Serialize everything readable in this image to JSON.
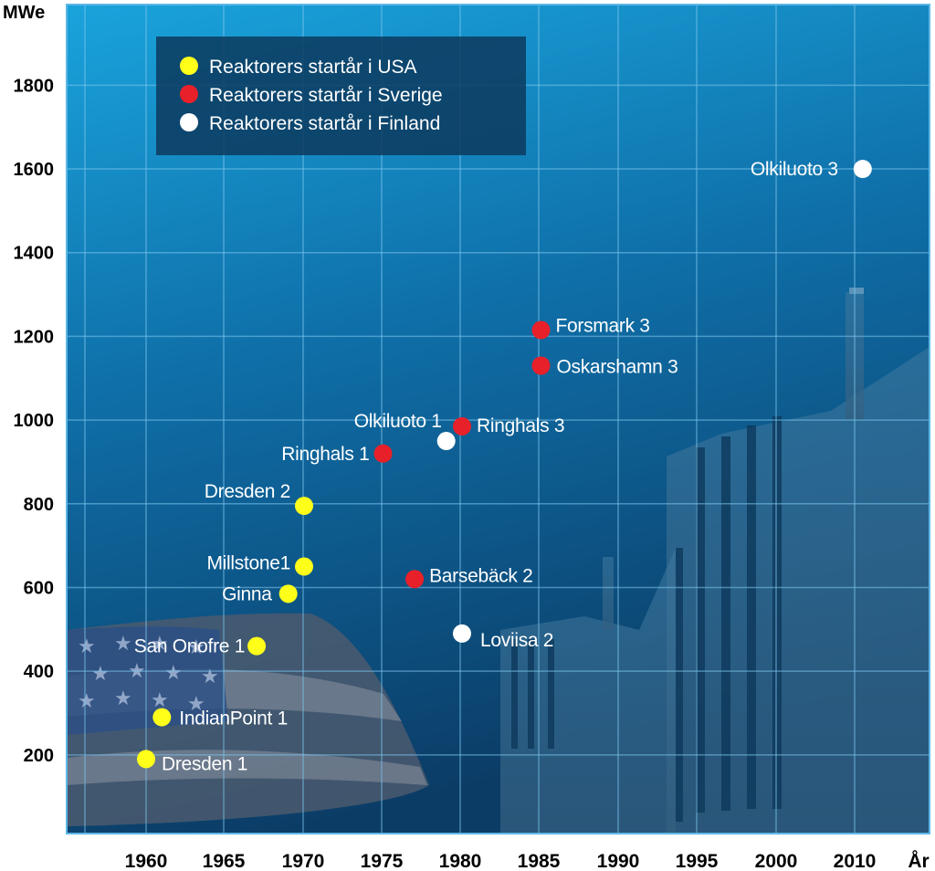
{
  "chart_data": {
    "type": "scatter",
    "xlabel": "År",
    "ylabel": "MWe",
    "x_ticks": [
      "1960",
      "1965",
      "1970",
      "1975",
      "1980",
      "1985",
      "1990",
      "1995",
      "2000",
      "2010",
      "År"
    ],
    "y_ticks": [
      200,
      400,
      600,
      800,
      1000,
      1200,
      1400,
      1600,
      1800
    ],
    "ylim": [
      0,
      1980
    ],
    "grid": true,
    "legend_position": "top-left",
    "series": [
      {
        "name": "Reaktorers startår i USA",
        "color": "#ffff1a",
        "points": [
          {
            "label": "Dresden 1",
            "year": 1960,
            "mwe": 190
          },
          {
            "label": "IndianPoint 1",
            "year": 1961,
            "mwe": 290
          },
          {
            "label": "San Onofre 1",
            "year": 1967,
            "mwe": 460
          },
          {
            "label": "Ginna",
            "year": 1969,
            "mwe": 585
          },
          {
            "label": "Millstone1",
            "year": 1970,
            "mwe": 650
          },
          {
            "label": "Dresden 2",
            "year": 1970,
            "mwe": 795
          }
        ]
      },
      {
        "name": "Reaktorers startår i Sverige",
        "color": "#e8202a",
        "points": [
          {
            "label": "Barsebäck 2",
            "year": 1977,
            "mwe": 620
          },
          {
            "label": "Ringhals 1",
            "year": 1975,
            "mwe": 920
          },
          {
            "label": "Ringhals 3",
            "year": 1980,
            "mwe": 985
          },
          {
            "label": "Oskarshamn 3",
            "year": 1985,
            "mwe": 1130
          },
          {
            "label": "Forsmark 3",
            "year": 1985,
            "mwe": 1215
          }
        ]
      },
      {
        "name": "Reaktorers startår i Finland",
        "color": "#ffffff",
        "points": [
          {
            "label": "Loviisa 2",
            "year": 1980,
            "mwe": 490
          },
          {
            "label": "Olkiluoto 1",
            "year": 1979,
            "mwe": 950
          },
          {
            "label": "Olkiluoto 3",
            "year": 2012,
            "mwe": 1600
          }
        ]
      }
    ]
  }
}
